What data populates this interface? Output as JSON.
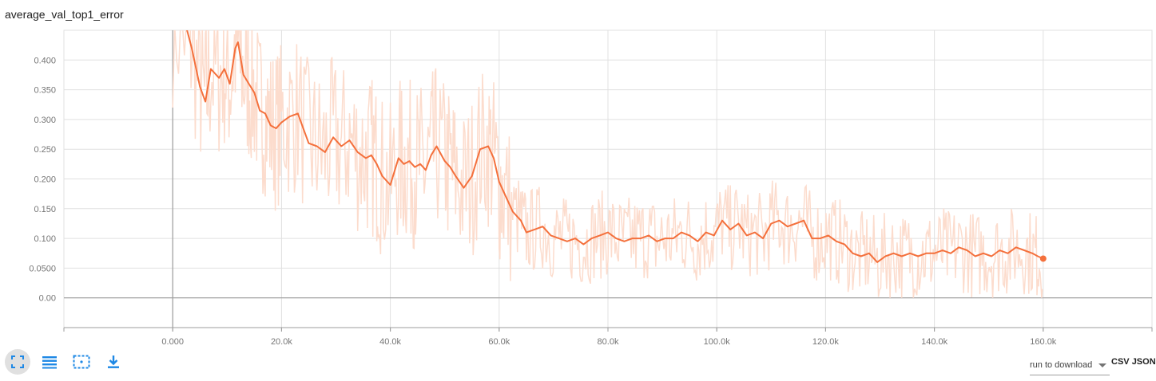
{
  "title": "average_val_top1_error",
  "toolbar": {
    "icons": [
      "fullscreen-icon",
      "list-icon",
      "fit-domain-icon",
      "download-icon"
    ]
  },
  "download": {
    "run_label": "run to download",
    "csv_label": "CSV",
    "json_label": "JSON"
  },
  "colors": {
    "smoothed": "#f4703c",
    "raw": "#fcdccd",
    "grid": "#e0e0e0",
    "axis": "#9e9e9e"
  },
  "chart_data": {
    "type": "line",
    "title": "average_val_top1_error",
    "xlabel": "",
    "ylabel": "",
    "x_ticks": [
      "0.000",
      "20.0k",
      "40.0k",
      "60.0k",
      "80.0k",
      "100.0k",
      "120.0k",
      "140.0k",
      "160.0k"
    ],
    "y_ticks": [
      "0.00",
      "0.0500",
      "0.100",
      "0.150",
      "0.200",
      "0.250",
      "0.300",
      "0.350",
      "0.400"
    ],
    "xlim": [
      -20000,
      180000
    ],
    "ylim": [
      -0.05,
      0.45
    ],
    "grid": true,
    "series": [
      {
        "role": "smoothed",
        "x": [
          0,
          2500,
          3500,
          5000,
          6000,
          7000,
          8500,
          9500,
          10500,
          11500,
          12000,
          13000,
          14000,
          15000,
          16000,
          17000,
          18000,
          19000,
          20000,
          21500,
          23000,
          25000,
          26500,
          28000,
          29500,
          31000,
          32500,
          34000,
          35500,
          36500,
          37500,
          38500,
          40000,
          41500,
          42500,
          43500,
          44500,
          45500,
          46500,
          47500,
          48500,
          50000,
          51000,
          52000,
          53500,
          55000,
          56500,
          58000,
          59000,
          60000,
          61000,
          62500,
          64000,
          65000,
          66500,
          68000,
          69500,
          71000,
          72500,
          74000,
          75500,
          77000,
          78500,
          80000,
          81500,
          83000,
          84500,
          86000,
          87500,
          89000,
          90500,
          92000,
          93500,
          95000,
          96500,
          98000,
          99500,
          101000,
          102500,
          104000,
          105500,
          107000,
          108500,
          110000,
          111500,
          113000,
          114500,
          116000,
          117500,
          119000,
          120500,
          122000,
          123500,
          125000,
          126500,
          128000,
          129500,
          131000,
          132500,
          134000,
          135500,
          137000,
          138500,
          140000,
          141500,
          143000,
          144500,
          146000,
          147500,
          149000,
          150500,
          152000,
          153500,
          155000,
          156500,
          158000,
          159000,
          160000
        ],
        "y": [
          0.46,
          0.455,
          0.42,
          0.355,
          0.33,
          0.385,
          0.37,
          0.385,
          0.36,
          0.42,
          0.43,
          0.375,
          0.36,
          0.345,
          0.315,
          0.31,
          0.29,
          0.285,
          0.295,
          0.305,
          0.31,
          0.26,
          0.255,
          0.245,
          0.27,
          0.255,
          0.265,
          0.245,
          0.235,
          0.24,
          0.225,
          0.205,
          0.19,
          0.235,
          0.225,
          0.23,
          0.22,
          0.225,
          0.215,
          0.24,
          0.255,
          0.23,
          0.22,
          0.205,
          0.185,
          0.205,
          0.25,
          0.255,
          0.235,
          0.195,
          0.175,
          0.145,
          0.13,
          0.11,
          0.115,
          0.12,
          0.105,
          0.1,
          0.095,
          0.1,
          0.09,
          0.1,
          0.105,
          0.11,
          0.1,
          0.095,
          0.1,
          0.1,
          0.105,
          0.095,
          0.1,
          0.1,
          0.11,
          0.105,
          0.095,
          0.11,
          0.105,
          0.13,
          0.115,
          0.125,
          0.105,
          0.11,
          0.1,
          0.125,
          0.13,
          0.12,
          0.125,
          0.13,
          0.1,
          0.1,
          0.105,
          0.095,
          0.09,
          0.075,
          0.07,
          0.075,
          0.06,
          0.07,
          0.075,
          0.07,
          0.075,
          0.07,
          0.075,
          0.075,
          0.08,
          0.075,
          0.085,
          0.08,
          0.07,
          0.075,
          0.07,
          0.08,
          0.075,
          0.085,
          0.08,
          0.075,
          0.07,
          0.066
        ]
      }
    ],
    "final_point": {
      "x": 160000,
      "y": 0.066
    }
  }
}
